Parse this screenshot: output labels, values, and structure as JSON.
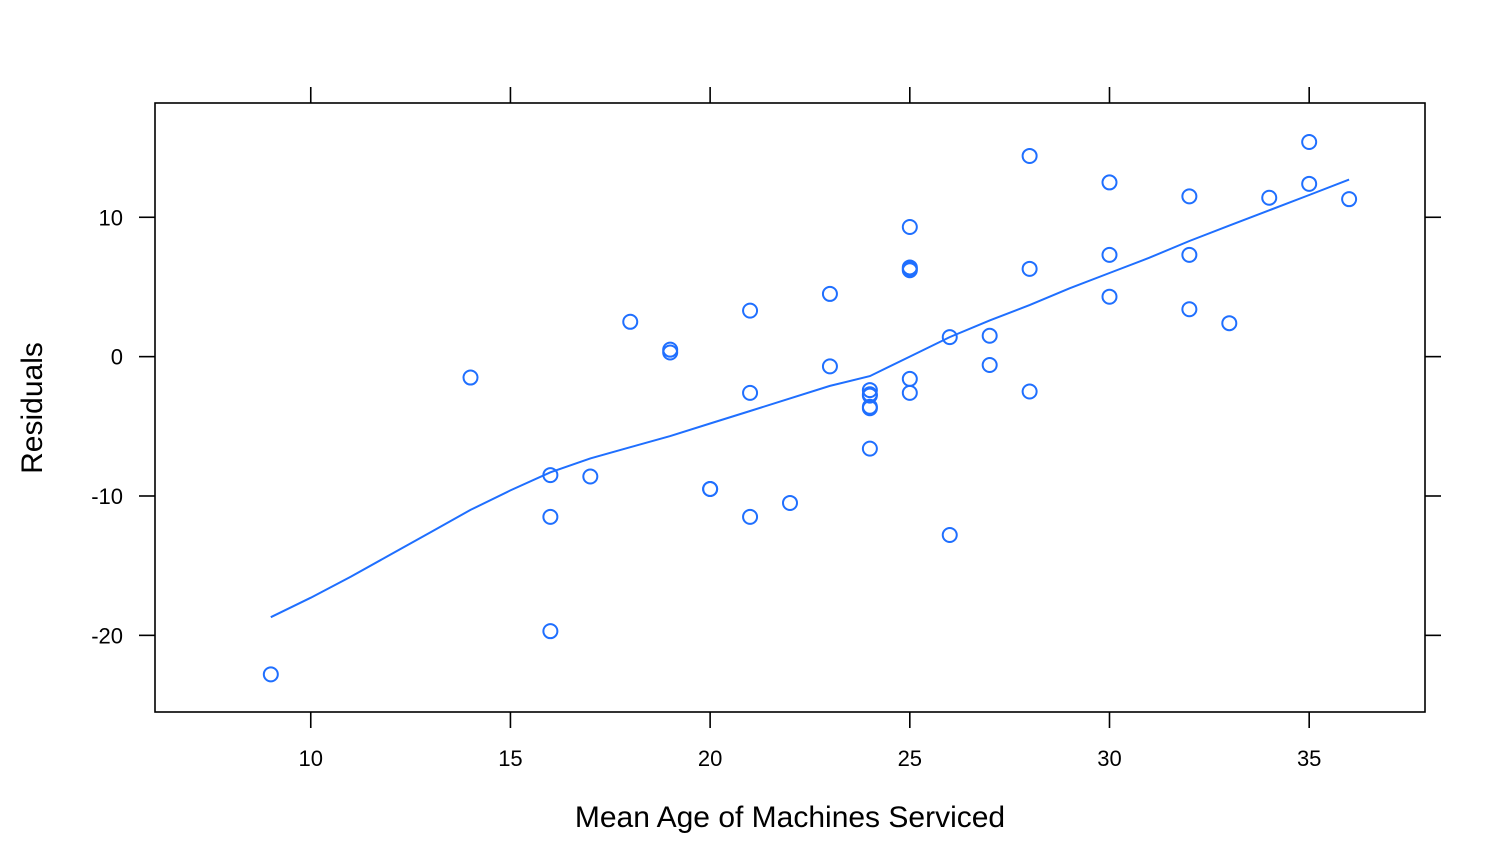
{
  "chart_data": {
    "type": "scatter",
    "title": "",
    "xlabel": "Mean Age of Machines Serviced",
    "ylabel": "Residuals",
    "xlim": [
      6.1,
      37.9
    ],
    "ylim": [
      -25.5,
      18.2
    ],
    "x_ticks": [
      10,
      15,
      20,
      25,
      30,
      35
    ],
    "y_ticks": [
      -20,
      -10,
      0,
      10
    ],
    "x_tick_labels": [
      "10",
      "15",
      "20",
      "25",
      "30",
      "35"
    ],
    "y_tick_labels": [
      "-20",
      "-10",
      "0",
      "10"
    ],
    "grid": false,
    "legend": "none",
    "colors": {
      "points": "#1f6fff",
      "smooth": "#1f6fff",
      "axis": "#000000"
    },
    "points": {
      "x": [
        9,
        14,
        16,
        16,
        16,
        17,
        18,
        19,
        19,
        20,
        20,
        21,
        21,
        21,
        22,
        23,
        23,
        24,
        24,
        24,
        24,
        24,
        24,
        25,
        25,
        25,
        25,
        25,
        25,
        26,
        26,
        27,
        27,
        28,
        28,
        28,
        30,
        30,
        30,
        32,
        32,
        32,
        33,
        34,
        35,
        35,
        36
      ],
      "y": [
        -22.8,
        -1.5,
        -8.5,
        -11.5,
        -19.7,
        -8.6,
        2.5,
        0.5,
        0.3,
        -9.5,
        -9.5,
        3.3,
        -2.6,
        -11.5,
        -10.5,
        4.5,
        -0.7,
        -2.4,
        -2.8,
        -3.6,
        -3.7,
        -6.6,
        -2.7,
        9.3,
        6.4,
        6.3,
        -1.6,
        -2.6,
        6.2,
        1.4,
        -12.8,
        1.5,
        -0.6,
        14.4,
        6.3,
        -2.5,
        12.5,
        7.3,
        4.3,
        11.5,
        7.3,
        3.4,
        2.4,
        11.4,
        15.4,
        12.4,
        11.3
      ]
    },
    "smooth_line": {
      "x": [
        9,
        10,
        11,
        12,
        13,
        14,
        15,
        16,
        17,
        18,
        19,
        20,
        21,
        22,
        23,
        24,
        25,
        26,
        27,
        28,
        29,
        30,
        31,
        32,
        33,
        34,
        35,
        36
      ],
      "y": [
        -18.7,
        -17.3,
        -15.8,
        -14.2,
        -12.6,
        -11.0,
        -9.6,
        -8.3,
        -7.3,
        -6.5,
        -5.7,
        -4.8,
        -3.9,
        -3.0,
        -2.1,
        -1.4,
        0.0,
        1.4,
        2.6,
        3.7,
        4.9,
        6.0,
        7.1,
        8.3,
        9.4,
        10.5,
        11.6,
        12.7
      ]
    }
  }
}
